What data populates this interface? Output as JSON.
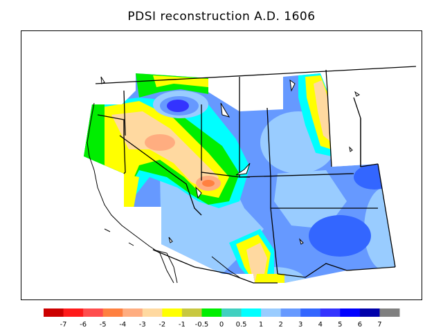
{
  "title": "PDSI reconstruction A.D. 1606",
  "legend": {
    "colors": [
      "#cc0000",
      "#ff1a1a",
      "#ff4d4d",
      "#ff8040",
      "#ffad80",
      "#ffd9a0",
      "#ffff00",
      "#c8c840",
      "#00ee00",
      "#40d0c0",
      "#00ffff",
      "#99ccff",
      "#6699ff",
      "#3366ff",
      "#3333ff",
      "#0000ff",
      "#0000aa",
      "#808080"
    ],
    "labels": [
      "-7",
      "-6",
      "-5",
      "-4",
      "-3",
      "-2",
      "-1",
      "-0.5",
      "0",
      "0.5",
      "1",
      "2",
      "3",
      "4",
      "5",
      "6",
      "7"
    ]
  }
}
